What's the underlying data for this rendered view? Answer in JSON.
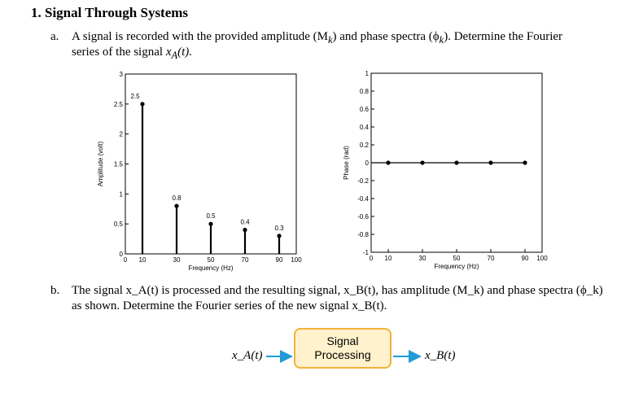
{
  "question": {
    "heading": "1. Signal Through Systems",
    "part_a": {
      "marker": "a.",
      "line1": "A signal is recorded with the provided amplitude (M",
      "line1_sub": "k",
      "line1_mid": ") and phase spectra (ϕ",
      "line1_sub2": "k",
      "line1_end": "). Determine the Fourier",
      "line2": "series of the signal ",
      "signal": "x",
      "signal_sub": "A",
      "signal_arg": "(t).",
      "full_text": "A signal is recorded with the provided amplitude (Mk) and phase spectra (ϕk). Determine the Fourier series of the signal xA(t)."
    },
    "part_b": {
      "marker": "b.",
      "line1": "The signal x_A(t) is processed and the resulting signal, x_B(t), has amplitude (M_k) and phase spectra (ϕ_k)",
      "line2": "as shown. Determine the Fourier series of the new signal x_B(t)."
    }
  },
  "chart_data": [
    {
      "type": "stem",
      "xlabel": "Frequency (Hz)",
      "ylabel": "Amplitude (volt)",
      "x": [
        10,
        30,
        50,
        70,
        90
      ],
      "y": [
        2.5,
        0.8,
        0.5,
        0.4,
        0.3
      ],
      "data_labels": [
        "2.5",
        "0.8",
        "0.5",
        "0.4",
        "0.3"
      ],
      "xticks": [
        "0",
        "10",
        "30",
        "50",
        "70",
        "90",
        "100"
      ],
      "yticks": [
        "0",
        "0.5",
        "1",
        "1.5",
        "2",
        "2.5",
        "3"
      ],
      "xlim": [
        0,
        100
      ],
      "ylim": [
        0,
        3
      ],
      "grid": false
    },
    {
      "type": "stem",
      "xlabel": "Frequency (Hz)",
      "ylabel": "Phase (rad)",
      "x": [
        10,
        30,
        50,
        70,
        90
      ],
      "y": [
        0,
        0,
        0,
        0,
        0
      ],
      "xticks": [
        "0",
        "10",
        "30",
        "50",
        "70",
        "90",
        "100"
      ],
      "yticks": [
        "-1",
        "-0.8",
        "-0.6",
        "-0.4",
        "-0.2",
        "0",
        "0.2",
        "0.4",
        "0.6",
        "0.8",
        "1"
      ],
      "xlim": [
        0,
        100
      ],
      "ylim": [
        -1,
        1
      ],
      "grid": false
    }
  ],
  "flow": {
    "input_label": "x_A(t)",
    "box_line1": "Signal",
    "box_line2": "Processing",
    "output_label": "x_B(t)",
    "box_fill": "#fff2cc",
    "box_border": "#f1b23a",
    "arrow_color": "#1f9bd7"
  }
}
